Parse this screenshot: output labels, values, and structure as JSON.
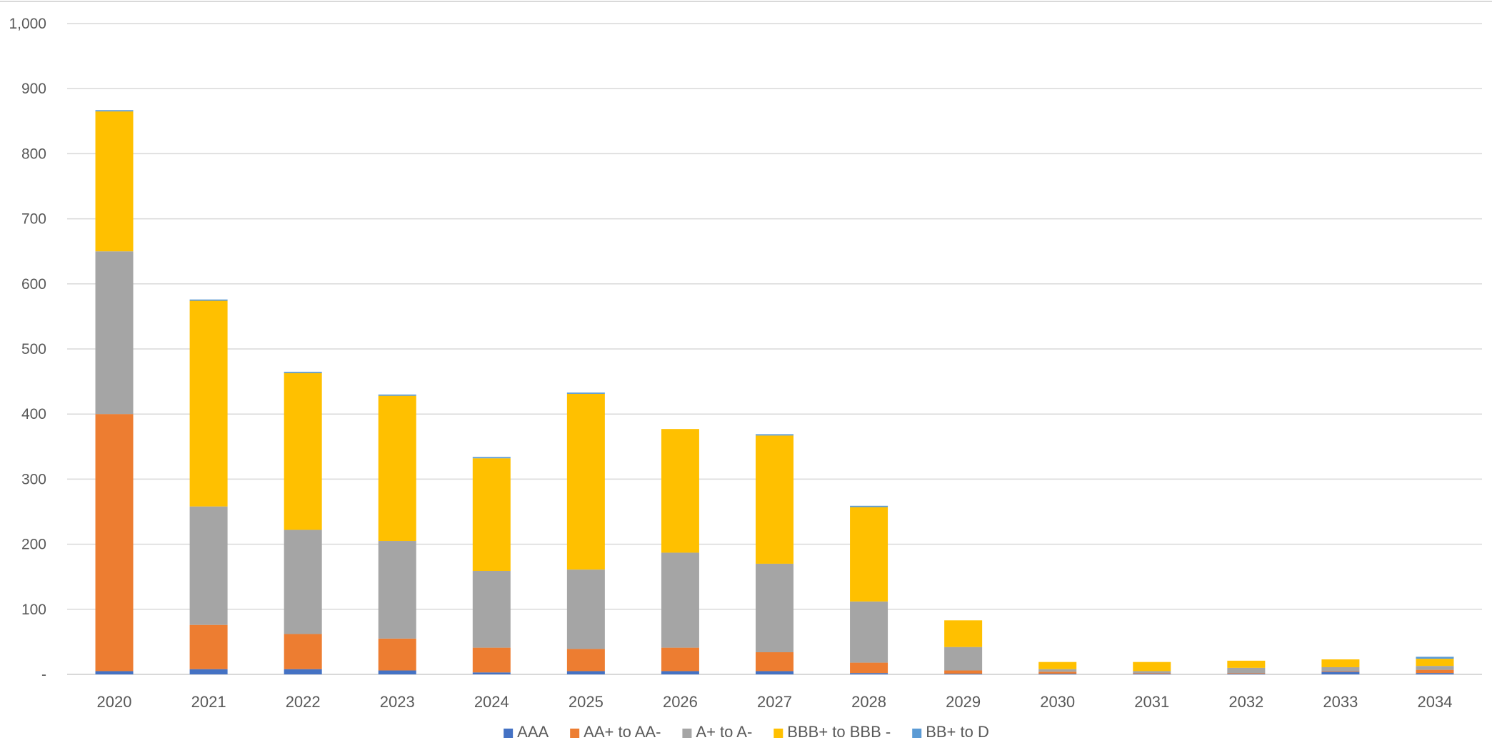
{
  "chart_data": {
    "type": "bar",
    "stacked": true,
    "categories": [
      "2020",
      "2021",
      "2022",
      "2023",
      "2024",
      "2025",
      "2026",
      "2027",
      "2028",
      "2029",
      "2030",
      "2031",
      "2032",
      "2033",
      "2034"
    ],
    "series": [
      {
        "name": "AAA",
        "color": "#4472C4",
        "values": [
          5,
          8,
          8,
          6,
          3,
          5,
          5,
          5,
          2,
          1,
          1,
          1,
          1,
          4,
          2
        ]
      },
      {
        "name": "AA+ to AA-",
        "color": "#ED7D31",
        "values": [
          395,
          68,
          54,
          49,
          38,
          34,
          36,
          29,
          16,
          5,
          3,
          1,
          1,
          1,
          5
        ]
      },
      {
        "name": "A+ to A-",
        "color": "#A5A5A5",
        "values": [
          250,
          182,
          160,
          150,
          118,
          122,
          146,
          136,
          94,
          36,
          4,
          3,
          8,
          6,
          6
        ]
      },
      {
        "name": "BBB+ to BBB -",
        "color": "#FFC000",
        "values": [
          215,
          316,
          241,
          223,
          173,
          270,
          190,
          197,
          145,
          41,
          11,
          14,
          11,
          12,
          11
        ]
      },
      {
        "name": "BB+ to D",
        "color": "#5B9BD5",
        "values": [
          2,
          2,
          2,
          2,
          2,
          2,
          0,
          2,
          2,
          0,
          0,
          0,
          0,
          0,
          3
        ]
      }
    ],
    "ylim": [
      0,
      1000
    ],
    "yticks": [
      0,
      100,
      200,
      300,
      400,
      500,
      600,
      700,
      800,
      900,
      1000
    ],
    "ytick_labels": [
      "-",
      "100",
      "200",
      "300",
      "400",
      "500",
      "600",
      "700",
      "800",
      "900",
      "1,000"
    ],
    "grid": true,
    "legend_position": "bottom",
    "title": "",
    "xlabel": "",
    "ylabel": ""
  }
}
